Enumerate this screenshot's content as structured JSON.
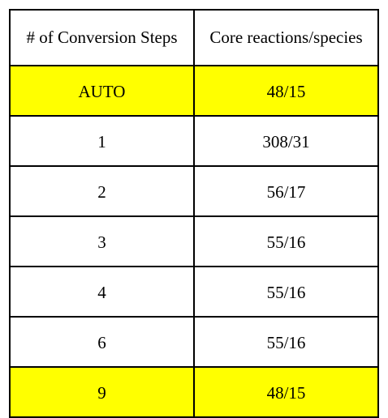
{
  "table": {
    "headers": [
      "# of Conversion Steps",
      "Core reactions/species"
    ],
    "highlight_color": "#ffff00",
    "rows": [
      {
        "steps": "AUTO",
        "core": "48/15",
        "highlighted": true
      },
      {
        "steps": "1",
        "core": "308/31",
        "highlighted": false
      },
      {
        "steps": "2",
        "core": "56/17",
        "highlighted": false
      },
      {
        "steps": "3",
        "core": "55/16",
        "highlighted": false
      },
      {
        "steps": "4",
        "core": "55/16",
        "highlighted": false
      },
      {
        "steps": "6",
        "core": "55/16",
        "highlighted": false
      },
      {
        "steps": "9",
        "core": "48/15",
        "highlighted": true
      }
    ]
  }
}
